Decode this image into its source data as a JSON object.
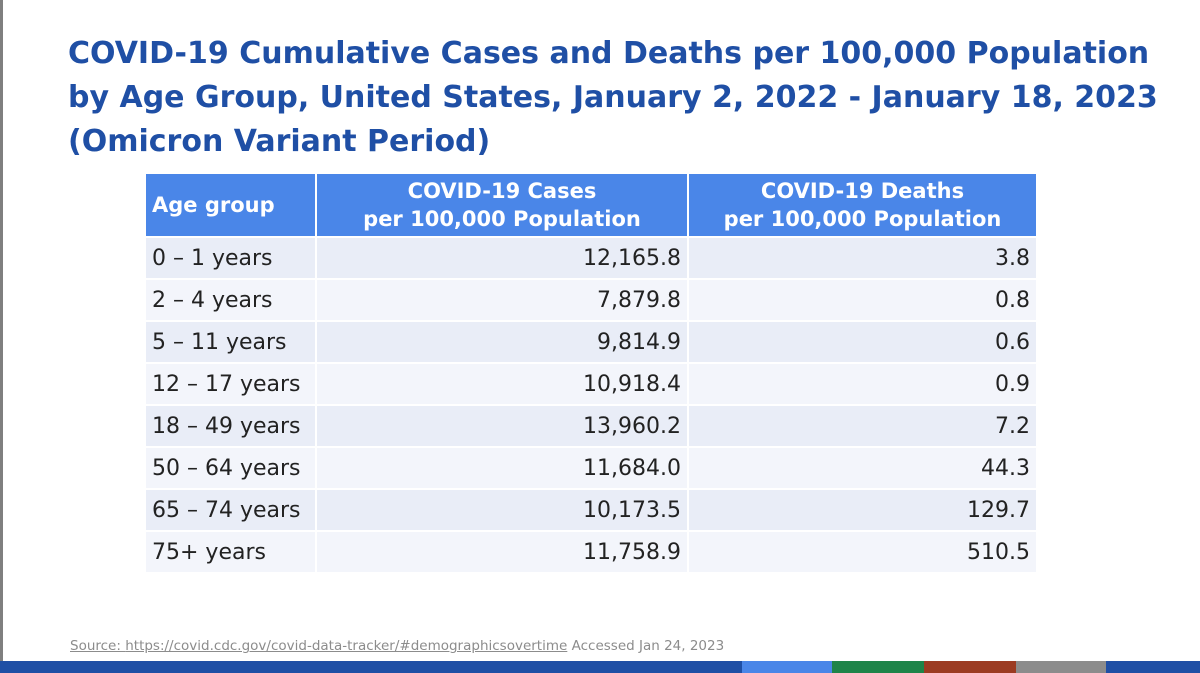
{
  "title": "COVID-19 Cumulative Cases and Deaths per 100,000 Population by Age Group, United States, January 2, 2022 - January 18, 2023 (Omicron Variant Period)",
  "table": {
    "headers": {
      "age": "Age group",
      "cases_line1": "COVID-19 Cases",
      "cases_line2": "per 100,000 Population",
      "deaths_line1": "COVID-19 Deaths",
      "deaths_line2": "per 100,000 Population"
    },
    "rows": [
      {
        "age": "0 – 1 years",
        "cases": "12,165.8",
        "deaths": "3.8"
      },
      {
        "age": "2 – 4 years",
        "cases": "7,879.8",
        "deaths": "0.8"
      },
      {
        "age": "5 – 11 years",
        "cases": "9,814.9",
        "deaths": "0.6"
      },
      {
        "age": "12 – 17 years",
        "cases": "10,918.4",
        "deaths": "0.9"
      },
      {
        "age": "18 – 49 years",
        "cases": "13,960.2",
        "deaths": "7.2"
      },
      {
        "age": "50 – 64 years",
        "cases": "11,684.0",
        "deaths": "44.3"
      },
      {
        "age": "65 – 74 years",
        "cases": "10,173.5",
        "deaths": "129.7"
      },
      {
        "age": "75+ years",
        "cases": "11,758.9",
        "deaths": "510.5"
      }
    ]
  },
  "source": {
    "label": "Source: ",
    "link": "https://covid.cdc.gov/covid-data-tracker/#demographicsovertime",
    "accessed": " Accessed Jan 24, 2023"
  },
  "colors": {
    "title": "#1f4fa5",
    "header_bg": "#4a86e8",
    "row_odd": "#e9edf7",
    "row_even": "#f3f5fb",
    "footer_base": "#1f4fa5",
    "footer_segments": [
      "#4a86e8",
      "#1e8449",
      "#9c3b22",
      "#8c8c8c"
    ]
  }
}
